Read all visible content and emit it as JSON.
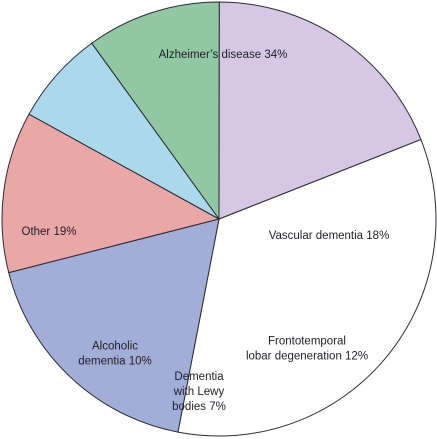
{
  "chart_data": {
    "type": "pie",
    "slices": [
      {
        "label_lines": [
          "Alzheimer’s disease 34%"
        ],
        "value": 34,
        "color": "#ffffff"
      },
      {
        "label_lines": [
          "Vascular dementia 18%"
        ],
        "value": 18,
        "color": "#a3aed8"
      },
      {
        "label_lines": [
          "Frontotemporal",
          "lobar degeneration 12%"
        ],
        "value": 12,
        "color": "#e9a7a6"
      },
      {
        "label_lines": [
          "Dementia",
          "with Lewy",
          "bodies 7%"
        ],
        "value": 7,
        "color": "#a9d9ea"
      },
      {
        "label_lines": [
          "Alcoholic",
          "dementia 10%"
        ],
        "value": 10,
        "color": "#92c7a3"
      },
      {
        "label_lines": [
          "Other 19%"
        ],
        "value": 19,
        "color": "#d6c8e5"
      }
    ]
  }
}
